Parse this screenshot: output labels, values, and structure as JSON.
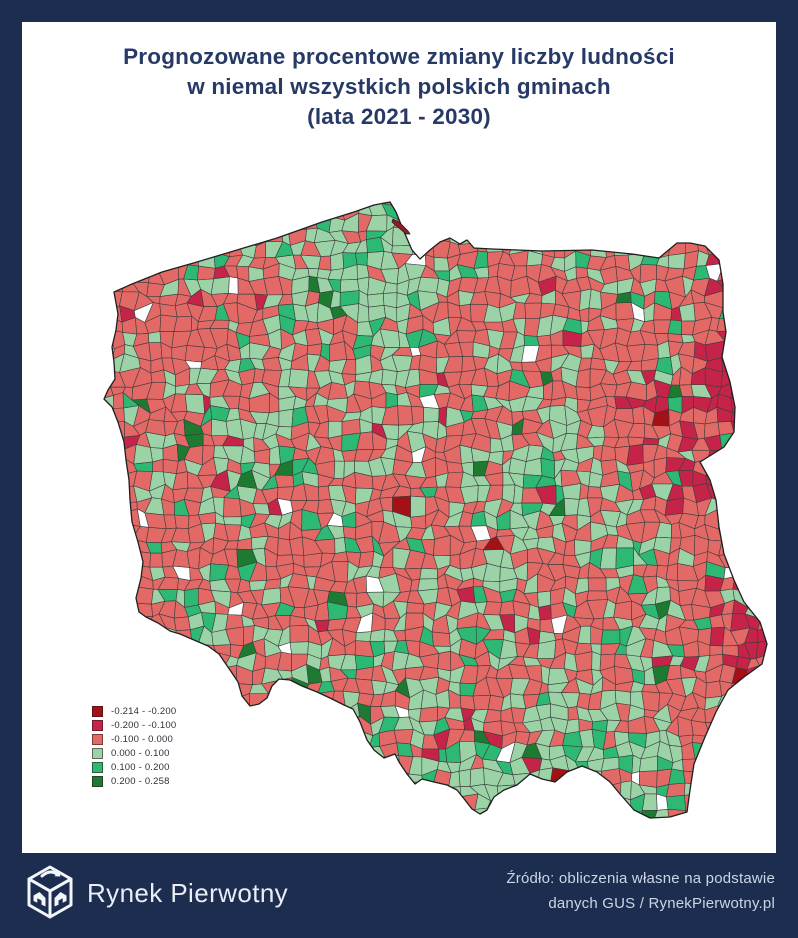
{
  "frame": {
    "border_color": "#1c2d50",
    "background": "#ffffff"
  },
  "title": {
    "line1": "Prognozowane procentowe zmiany liczby ludności",
    "line2": "w niemal wszystkich  polskich gminach",
    "line3": "(lata 2021 - 2030)",
    "color": "#273a66"
  },
  "map": {
    "name": "poland-gmina-population-change-choropleth",
    "no_data_color": "#ffffff",
    "border_line_color": "#3d3d3d",
    "classes": [
      {
        "label": "-0.214 - -0.200",
        "color": "#a31117"
      },
      {
        "label": "-0.200 - -0.100",
        "color": "#c52448"
      },
      {
        "label": "-0.100 - 0.000",
        "color": "#e26966"
      },
      {
        "label": "0.000 - 0.100",
        "color": "#9bd3a6"
      },
      {
        "label": "0.100 - 0.200",
        "color": "#2db873"
      },
      {
        "label": "0.200 - 0.258",
        "color": "#1d7b31"
      }
    ]
  },
  "footer": {
    "brand": "Rynek Pierwotny",
    "source_line1": "Źródło: obliczenia własne na podstawie",
    "source_line2": "danych GUS / RynekPierwotny.pl"
  }
}
